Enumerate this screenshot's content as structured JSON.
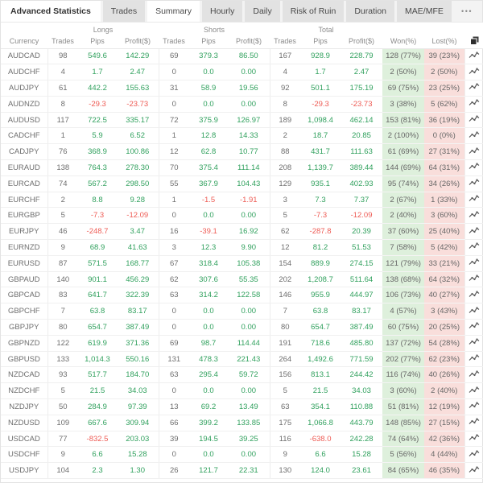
{
  "tabs": {
    "section_label": "Advanced Statistics",
    "items": [
      {
        "label": "Trades",
        "active": false
      },
      {
        "label": "Summary",
        "active": true
      },
      {
        "label": "Hourly",
        "active": false
      },
      {
        "label": "Daily",
        "active": false
      },
      {
        "label": "Risk of Ruin",
        "active": false
      },
      {
        "label": "Duration",
        "active": false
      },
      {
        "label": "MAE/MFE",
        "active": false
      }
    ],
    "menu": "•••"
  },
  "icons": {
    "more_menu": "three-dots-menu",
    "copy": "copy-overlapping-squares",
    "row_chart": "line-chart-sparkline"
  },
  "colors": {
    "positive": "#31a15e",
    "negative": "#ee5b54",
    "won_bg": "#def0dc",
    "lost_bg": "#f9dedb"
  },
  "table": {
    "groups": [
      "Longs",
      "Shorts",
      "Total"
    ],
    "columns": [
      "Currency",
      "Trades",
      "Pips",
      "Profit($)",
      "Trades",
      "Pips",
      "Profit($)",
      "Trades",
      "Pips",
      "Profit($)",
      "Won(%)",
      "Lost(%)"
    ],
    "rows": [
      {
        "currency": "AUDCAD",
        "long_trades": "98",
        "long_pips": "549.6",
        "long_profit": "142.29",
        "short_trades": "69",
        "short_pips": "379.3",
        "short_profit": "86.50",
        "total_trades": "167",
        "total_pips": "928.9",
        "total_profit": "228.79",
        "won": "128 (77%)",
        "lost": "39 (23%)"
      },
      {
        "currency": "AUDCHF",
        "long_trades": "4",
        "long_pips": "1.7",
        "long_profit": "2.47",
        "short_trades": "0",
        "short_pips": "0.0",
        "short_profit": "0.00",
        "total_trades": "4",
        "total_pips": "1.7",
        "total_profit": "2.47",
        "won": "2 (50%)",
        "lost": "2 (50%)"
      },
      {
        "currency": "AUDJPY",
        "long_trades": "61",
        "long_pips": "442.2",
        "long_profit": "155.63",
        "short_trades": "31",
        "short_pips": "58.9",
        "short_profit": "19.56",
        "total_trades": "92",
        "total_pips": "501.1",
        "total_profit": "175.19",
        "won": "69 (75%)",
        "lost": "23 (25%)"
      },
      {
        "currency": "AUDNZD",
        "long_trades": "8",
        "long_pips": "-29.3",
        "long_profit": "-23.73",
        "short_trades": "0",
        "short_pips": "0.0",
        "short_profit": "0.00",
        "total_trades": "8",
        "total_pips": "-29.3",
        "total_profit": "-23.73",
        "won": "3 (38%)",
        "lost": "5 (62%)"
      },
      {
        "currency": "AUDUSD",
        "long_trades": "117",
        "long_pips": "722.5",
        "long_profit": "335.17",
        "short_trades": "72",
        "short_pips": "375.9",
        "short_profit": "126.97",
        "total_trades": "189",
        "total_pips": "1,098.4",
        "total_profit": "462.14",
        "won": "153 (81%)",
        "lost": "36 (19%)"
      },
      {
        "currency": "CADCHF",
        "long_trades": "1",
        "long_pips": "5.9",
        "long_profit": "6.52",
        "short_trades": "1",
        "short_pips": "12.8",
        "short_profit": "14.33",
        "total_trades": "2",
        "total_pips": "18.7",
        "total_profit": "20.85",
        "won": "2 (100%)",
        "lost": "0 (0%)"
      },
      {
        "currency": "CADJPY",
        "long_trades": "76",
        "long_pips": "368.9",
        "long_profit": "100.86",
        "short_trades": "12",
        "short_pips": "62.8",
        "short_profit": "10.77",
        "total_trades": "88",
        "total_pips": "431.7",
        "total_profit": "111.63",
        "won": "61 (69%)",
        "lost": "27 (31%)"
      },
      {
        "currency": "EURAUD",
        "long_trades": "138",
        "long_pips": "764.3",
        "long_profit": "278.30",
        "short_trades": "70",
        "short_pips": "375.4",
        "short_profit": "111.14",
        "total_trades": "208",
        "total_pips": "1,139.7",
        "total_profit": "389.44",
        "won": "144 (69%)",
        "lost": "64 (31%)"
      },
      {
        "currency": "EURCAD",
        "long_trades": "74",
        "long_pips": "567.2",
        "long_profit": "298.50",
        "short_trades": "55",
        "short_pips": "367.9",
        "short_profit": "104.43",
        "total_trades": "129",
        "total_pips": "935.1",
        "total_profit": "402.93",
        "won": "95 (74%)",
        "lost": "34 (26%)"
      },
      {
        "currency": "EURCHF",
        "long_trades": "2",
        "long_pips": "8.8",
        "long_profit": "9.28",
        "short_trades": "1",
        "short_pips": "-1.5",
        "short_profit": "-1.91",
        "total_trades": "3",
        "total_pips": "7.3",
        "total_profit": "7.37",
        "won": "2 (67%)",
        "lost": "1 (33%)"
      },
      {
        "currency": "EURGBP",
        "long_trades": "5",
        "long_pips": "-7.3",
        "long_profit": "-12.09",
        "short_trades": "0",
        "short_pips": "0.0",
        "short_profit": "0.00",
        "total_trades": "5",
        "total_pips": "-7.3",
        "total_profit": "-12.09",
        "won": "2 (40%)",
        "lost": "3 (60%)"
      },
      {
        "currency": "EURJPY",
        "long_trades": "46",
        "long_pips": "-248.7",
        "long_profit": "3.47",
        "short_trades": "16",
        "short_pips": "-39.1",
        "short_profit": "16.92",
        "total_trades": "62",
        "total_pips": "-287.8",
        "total_profit": "20.39",
        "won": "37 (60%)",
        "lost": "25 (40%)"
      },
      {
        "currency": "EURNZD",
        "long_trades": "9",
        "long_pips": "68.9",
        "long_profit": "41.63",
        "short_trades": "3",
        "short_pips": "12.3",
        "short_profit": "9.90",
        "total_trades": "12",
        "total_pips": "81.2",
        "total_profit": "51.53",
        "won": "7 (58%)",
        "lost": "5 (42%)"
      },
      {
        "currency": "EURUSD",
        "long_trades": "87",
        "long_pips": "571.5",
        "long_profit": "168.77",
        "short_trades": "67",
        "short_pips": "318.4",
        "short_profit": "105.38",
        "total_trades": "154",
        "total_pips": "889.9",
        "total_profit": "274.15",
        "won": "121 (79%)",
        "lost": "33 (21%)"
      },
      {
        "currency": "GBPAUD",
        "long_trades": "140",
        "long_pips": "901.1",
        "long_profit": "456.29",
        "short_trades": "62",
        "short_pips": "307.6",
        "short_profit": "55.35",
        "total_trades": "202",
        "total_pips": "1,208.7",
        "total_profit": "511.64",
        "won": "138 (68%)",
        "lost": "64 (32%)"
      },
      {
        "currency": "GBPCAD",
        "long_trades": "83",
        "long_pips": "641.7",
        "long_profit": "322.39",
        "short_trades": "63",
        "short_pips": "314.2",
        "short_profit": "122.58",
        "total_trades": "146",
        "total_pips": "955.9",
        "total_profit": "444.97",
        "won": "106 (73%)",
        "lost": "40 (27%)"
      },
      {
        "currency": "GBPCHF",
        "long_trades": "7",
        "long_pips": "63.8",
        "long_profit": "83.17",
        "short_trades": "0",
        "short_pips": "0.0",
        "short_profit": "0.00",
        "total_trades": "7",
        "total_pips": "63.8",
        "total_profit": "83.17",
        "won": "4 (57%)",
        "lost": "3 (43%)"
      },
      {
        "currency": "GBPJPY",
        "long_trades": "80",
        "long_pips": "654.7",
        "long_profit": "387.49",
        "short_trades": "0",
        "short_pips": "0.0",
        "short_profit": "0.00",
        "total_trades": "80",
        "total_pips": "654.7",
        "total_profit": "387.49",
        "won": "60 (75%)",
        "lost": "20 (25%)"
      },
      {
        "currency": "GBPNZD",
        "long_trades": "122",
        "long_pips": "619.9",
        "long_profit": "371.36",
        "short_trades": "69",
        "short_pips": "98.7",
        "short_profit": "114.44",
        "total_trades": "191",
        "total_pips": "718.6",
        "total_profit": "485.80",
        "won": "137 (72%)",
        "lost": "54 (28%)"
      },
      {
        "currency": "GBPUSD",
        "long_trades": "133",
        "long_pips": "1,014.3",
        "long_profit": "550.16",
        "short_trades": "131",
        "short_pips": "478.3",
        "short_profit": "221.43",
        "total_trades": "264",
        "total_pips": "1,492.6",
        "total_profit": "771.59",
        "won": "202 (77%)",
        "lost": "62 (23%)"
      },
      {
        "currency": "NZDCAD",
        "long_trades": "93",
        "long_pips": "517.7",
        "long_profit": "184.70",
        "short_trades": "63",
        "short_pips": "295.4",
        "short_profit": "59.72",
        "total_trades": "156",
        "total_pips": "813.1",
        "total_profit": "244.42",
        "won": "116 (74%)",
        "lost": "40 (26%)"
      },
      {
        "currency": "NZDCHF",
        "long_trades": "5",
        "long_pips": "21.5",
        "long_profit": "34.03",
        "short_trades": "0",
        "short_pips": "0.0",
        "short_profit": "0.00",
        "total_trades": "5",
        "total_pips": "21.5",
        "total_profit": "34.03",
        "won": "3 (60%)",
        "lost": "2 (40%)"
      },
      {
        "currency": "NZDJPY",
        "long_trades": "50",
        "long_pips": "284.9",
        "long_profit": "97.39",
        "short_trades": "13",
        "short_pips": "69.2",
        "short_profit": "13.49",
        "total_trades": "63",
        "total_pips": "354.1",
        "total_profit": "110.88",
        "won": "51 (81%)",
        "lost": "12 (19%)"
      },
      {
        "currency": "NZDUSD",
        "long_trades": "109",
        "long_pips": "667.6",
        "long_profit": "309.94",
        "short_trades": "66",
        "short_pips": "399.2",
        "short_profit": "133.85",
        "total_trades": "175",
        "total_pips": "1,066.8",
        "total_profit": "443.79",
        "won": "148 (85%)",
        "lost": "27 (15%)"
      },
      {
        "currency": "USDCAD",
        "long_trades": "77",
        "long_pips": "-832.5",
        "long_profit": "203.03",
        "short_trades": "39",
        "short_pips": "194.5",
        "short_profit": "39.25",
        "total_trades": "116",
        "total_pips": "-638.0",
        "total_profit": "242.28",
        "won": "74 (64%)",
        "lost": "42 (36%)"
      },
      {
        "currency": "USDCHF",
        "long_trades": "9",
        "long_pips": "6.6",
        "long_profit": "15.28",
        "short_trades": "0",
        "short_pips": "0.0",
        "short_profit": "0.00",
        "total_trades": "9",
        "total_pips": "6.6",
        "total_profit": "15.28",
        "won": "5 (56%)",
        "lost": "4 (44%)"
      },
      {
        "currency": "USDJPY",
        "long_trades": "104",
        "long_pips": "2.3",
        "long_profit": "1.30",
        "short_trades": "26",
        "short_pips": "121.7",
        "short_profit": "22.31",
        "total_trades": "130",
        "total_pips": "124.0",
        "total_profit": "23.61",
        "won": "84 (65%)",
        "lost": "46 (35%)"
      }
    ]
  }
}
